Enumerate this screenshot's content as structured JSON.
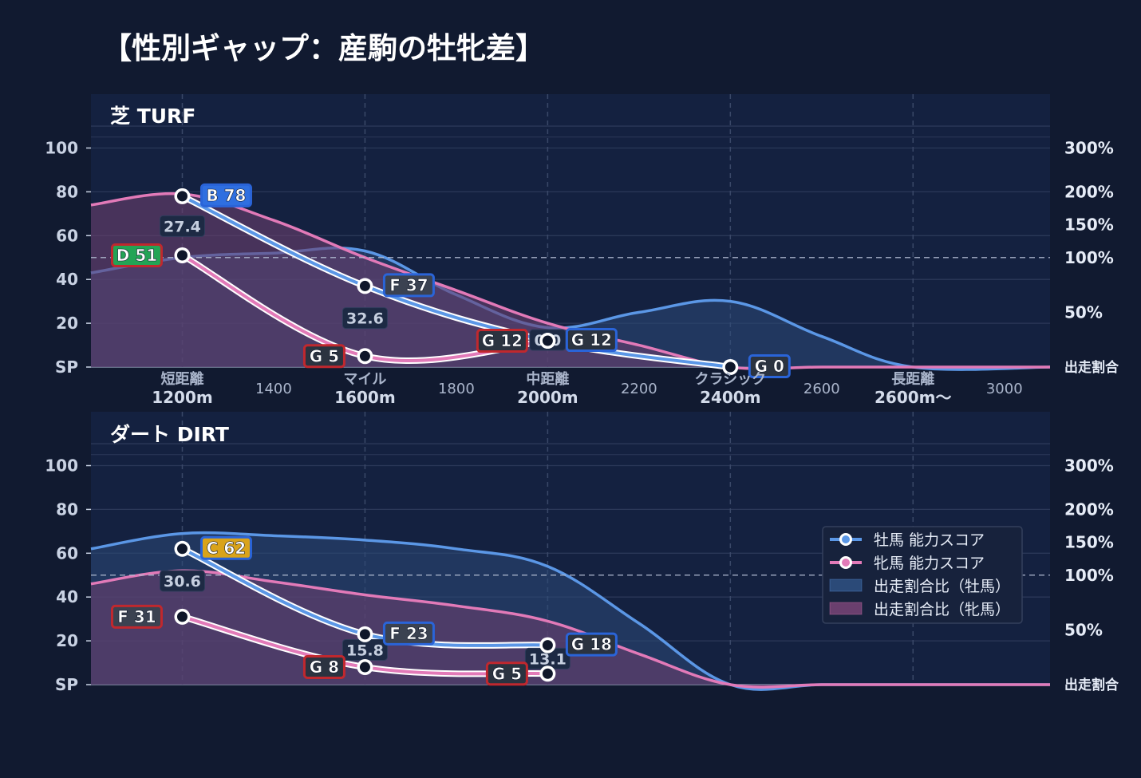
{
  "title": "【性別ギャップ：産駒の牡牝差】",
  "colors": {
    "background": "#111a30",
    "panel": "#142140",
    "male": "#5b97e6",
    "female": "#e27ab8",
    "male_fill": "#2b4a78",
    "female_fill": "#6a3f6e",
    "grade": {
      "B": "#2f6fe0",
      "C": "#d9a31a",
      "D": "#23a455",
      "F": "#3b4251",
      "G": "#2b3340"
    },
    "border_male": "#2a64d8",
    "border_female": "#c0282e"
  },
  "chart_data": [
    {
      "panel": "turf",
      "type": "line",
      "title": "芝 TURF",
      "x_ticks": [
        {
          "x": 1200,
          "label": "短距離",
          "sub": "1200m"
        },
        {
          "x": 1400,
          "label": "1400",
          "sub": ""
        },
        {
          "x": 1600,
          "label": "マイル",
          "sub": "1600m"
        },
        {
          "x": 1800,
          "label": "1800",
          "sub": ""
        },
        {
          "x": 2000,
          "label": "中距離",
          "sub": "2000m"
        },
        {
          "x": 2200,
          "label": "2200",
          "sub": ""
        },
        {
          "x": 2400,
          "label": "クラシック",
          "sub": "2400m"
        },
        {
          "x": 2600,
          "label": "2600",
          "sub": ""
        },
        {
          "x": 2800,
          "label": "長距離",
          "sub": "2600m〜"
        },
        {
          "x": 3000,
          "label": "3000",
          "sub": ""
        }
      ],
      "xlim": [
        1000,
        3100
      ],
      "ylim": [
        0,
        110
      ],
      "y_ticks": [
        {
          "v": 0,
          "label": "SP"
        },
        {
          "v": 20,
          "label": "20"
        },
        {
          "v": 40,
          "label": "40"
        },
        {
          "v": 60,
          "label": "60"
        },
        {
          "v": 80,
          "label": "80"
        },
        {
          "v": 100,
          "label": "100"
        }
      ],
      "ratio_ticks": [
        {
          "v": 0,
          "label": "出走割合"
        },
        {
          "v": 25,
          "label": "50%"
        },
        {
          "v": 50,
          "label": "100%"
        },
        {
          "v": 65,
          "label": "150%"
        },
        {
          "v": 80,
          "label": "200%"
        },
        {
          "v": 100,
          "label": "300%"
        }
      ],
      "reference_line": 50,
      "series": [
        {
          "name": "牡馬 能力スコア",
          "x": [
            1200,
            1600,
            2000,
            2400
          ],
          "y": [
            78,
            37,
            12,
            0
          ],
          "grades": [
            "B 78",
            "F 37",
            "G 12",
            "G 0"
          ],
          "grade_keys": [
            "B",
            "F",
            "G",
            "G"
          ]
        },
        {
          "name": "牝馬 能力スコア",
          "x": [
            1200,
            1600,
            2000
          ],
          "y": [
            51,
            5,
            12
          ],
          "grades": [
            "D 51",
            "G 5",
            "G 12"
          ],
          "grade_keys": [
            "D",
            "G",
            "G"
          ]
        }
      ],
      "gaps": [
        {
          "x": 1200,
          "y": 64,
          "label": "27.4"
        },
        {
          "x": 1600,
          "y": 22,
          "label": "32.6"
        },
        {
          "x": 2000,
          "y": 12,
          "label": "0.0"
        }
      ],
      "ratio_series": [
        {
          "name": "出走割合比（牡馬）",
          "x": [
            1000,
            1200,
            1400,
            1600,
            1800,
            2000,
            2200,
            2400,
            2600,
            2800,
            3100
          ],
          "y": [
            43,
            50,
            52,
            53,
            33,
            18,
            25,
            30,
            14,
            0,
            0
          ]
        },
        {
          "name": "出走割合比（牝馬）",
          "x": [
            1000,
            1200,
            1400,
            1600,
            1800,
            2000,
            2200,
            2400,
            2600,
            2800,
            3100
          ],
          "y": [
            74,
            79,
            67,
            50,
            35,
            20,
            10,
            0,
            0,
            0,
            0
          ]
        }
      ]
    },
    {
      "panel": "dirt",
      "type": "line",
      "title": "ダート DIRT",
      "x_ticks": [],
      "xlim": [
        1000,
        3100
      ],
      "ylim": [
        0,
        110
      ],
      "y_ticks": [
        {
          "v": 0,
          "label": "SP"
        },
        {
          "v": 20,
          "label": "20"
        },
        {
          "v": 40,
          "label": "40"
        },
        {
          "v": 60,
          "label": "60"
        },
        {
          "v": 80,
          "label": "80"
        },
        {
          "v": 100,
          "label": "100"
        }
      ],
      "ratio_ticks": [
        {
          "v": 0,
          "label": "出走割合"
        },
        {
          "v": 25,
          "label": "50%"
        },
        {
          "v": 50,
          "label": "100%"
        },
        {
          "v": 65,
          "label": "150%"
        },
        {
          "v": 80,
          "label": "200%"
        },
        {
          "v": 100,
          "label": "300%"
        }
      ],
      "reference_line": 50,
      "series": [
        {
          "name": "牡馬 能力スコア",
          "x": [
            1200,
            1600,
            2000
          ],
          "y": [
            62,
            23,
            18
          ],
          "grades": [
            "C 62",
            "F 23",
            "G 18"
          ],
          "grade_keys": [
            "C",
            "F",
            "G"
          ]
        },
        {
          "name": "牝馬 能力スコア",
          "x": [
            1200,
            1600,
            2000
          ],
          "y": [
            31,
            8,
            5
          ],
          "grades": [
            "F 31",
            "G 8",
            "G 5"
          ],
          "grade_keys": [
            "F",
            "G",
            "G"
          ]
        }
      ],
      "gaps": [
        {
          "x": 1200,
          "y": 47,
          "label": "30.6"
        },
        {
          "x": 1600,
          "y": 15.5,
          "label": "15.8"
        },
        {
          "x": 2000,
          "y": 11.5,
          "label": "13.1"
        }
      ],
      "ratio_series": [
        {
          "name": "出走割合比（牡馬）",
          "x": [
            1000,
            1200,
            1400,
            1600,
            1800,
            2000,
            2200,
            2400,
            2600,
            2800,
            3100
          ],
          "y": [
            62,
            69,
            68,
            66,
            62,
            54,
            28,
            0,
            0,
            0,
            0
          ]
        },
        {
          "name": "出走割合比（牝馬）",
          "x": [
            1000,
            1200,
            1400,
            1600,
            1800,
            2000,
            2200,
            2400,
            2600,
            2800,
            3100
          ],
          "y": [
            46,
            52,
            47,
            41,
            36,
            29,
            14,
            0,
            0,
            0,
            0
          ]
        }
      ]
    }
  ],
  "legend": {
    "position": "right",
    "items": [
      {
        "label": "牡馬 能力スコア",
        "kind": "line-male"
      },
      {
        "label": "牝馬 能力スコア",
        "kind": "line-female"
      },
      {
        "label": "出走割合比（牡馬）",
        "kind": "fill-male"
      },
      {
        "label": "出走割合比（牝馬）",
        "kind": "fill-female"
      }
    ]
  }
}
